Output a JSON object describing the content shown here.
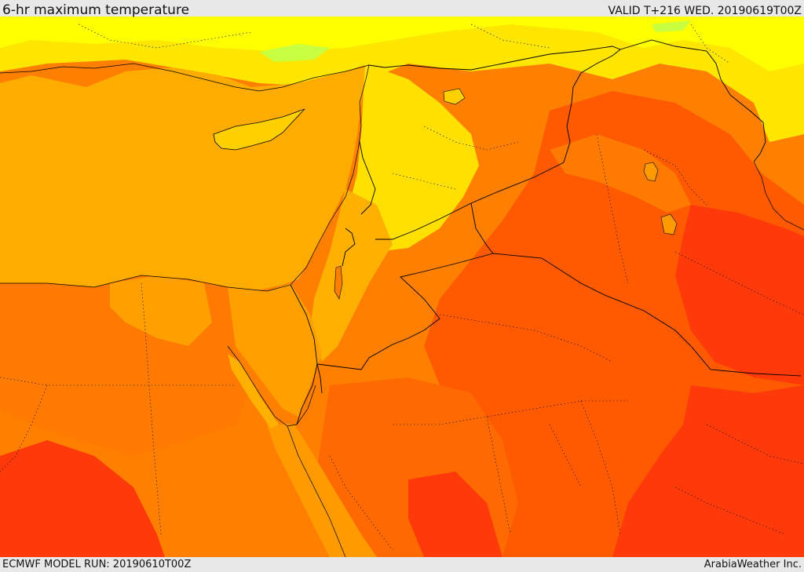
{
  "header": {
    "title": "6-hr maximum temperature",
    "valid_time": "VALID T+216 WED. 20190619T00Z"
  },
  "footer": {
    "model_run": "ECMWF MODEL RUN: 20190610T00Z",
    "credit": "ArabiaWeather Inc."
  },
  "palette": {
    "sea": "#ffac00",
    "cool_yellow": "#ffff00",
    "light_yellow": "#fff000",
    "yellow_orange": "#ffd000",
    "orange": "#ff9a00",
    "dark_orange": "#ff8000",
    "red_orange": "#ff5a00",
    "hot_red": "#ff3a0a",
    "green_patch": "#c8ff40",
    "border": "#000000"
  }
}
